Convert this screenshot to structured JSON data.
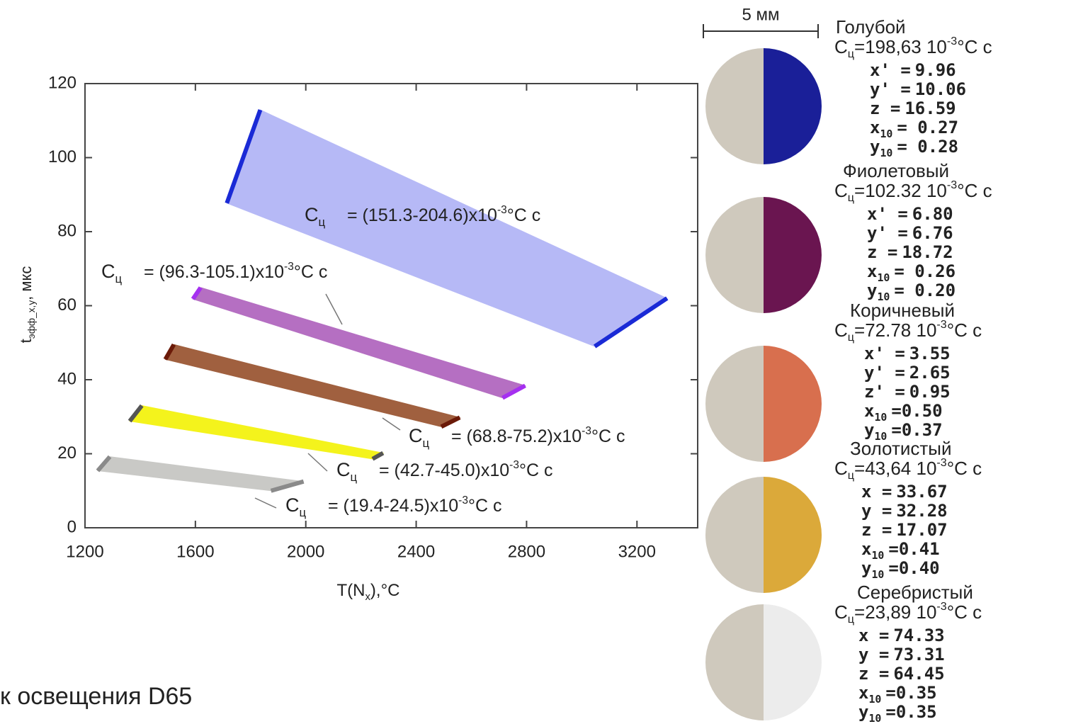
{
  "chart_data": {
    "type": "polygon",
    "xlabel": {
      "text": "T(N",
      "sub": "x",
      "rest": "),°C"
    },
    "ylabel": {
      "text": "t",
      "sub": "эфф_x,y",
      "rest": ", мкс"
    },
    "xlim": [
      1200,
      3420
    ],
    "ylim": [
      0,
      120
    ],
    "xticks": [
      1200,
      1600,
      2000,
      2400,
      2800,
      3200
    ],
    "yticks": [
      0,
      20,
      40,
      60,
      80,
      100,
      120
    ],
    "label_symbol": "C",
    "label_subscript": "ц",
    "series": [
      {
        "fill": "#b6b9f6",
        "edge": "#1a2ad6",
        "x": [
          1714,
          1835,
          3309,
          3047
        ],
        "values": [
          87.7,
          112.9,
          62.0,
          49.0
        ],
        "label": {
          "value": "= (151.3-204.6)x10",
          "exp": "-3",
          "unit": "°C c"
        }
      },
      {
        "fill": "#b56fc2",
        "edge": "#a530f0",
        "x": [
          1591,
          1619,
          2795,
          2713
        ],
        "values": [
          61.8,
          64.9,
          38.4,
          35.1
        ],
        "label": {
          "value": "= (96.3-105.1)x10",
          "exp": "-3",
          "unit": "°C c"
        }
      },
      {
        "fill": "#a0603f",
        "edge": "#6b1a08",
        "x": [
          1491,
          1522,
          2558,
          2491
        ],
        "values": [
          45.5,
          49.5,
          29.8,
          27.3
        ],
        "label": {
          "value": "= (68.8-75.2)x10",
          "exp": "-3",
          "unit": "°C c"
        }
      },
      {
        "fill": "#f4f31c",
        "edge": "#555",
        "x": [
          1362,
          1406,
          2280,
          2242
        ],
        "values": [
          28.8,
          33.0,
          20.2,
          18.6
        ],
        "label": {
          "value": "= (42.7-45.0)x10",
          "exp": "-3",
          "unit": "°C c"
        }
      },
      {
        "fill": "#c9c9c6",
        "edge": "#8a8a8a",
        "x": [
          1246,
          1290,
          1992,
          1874
        ],
        "values": [
          15.4,
          19.2,
          12.5,
          10.0
        ],
        "label": {
          "value": "= (19.4-24.5)x10",
          "exp": "-3",
          "unit": "°C c"
        }
      }
    ]
  },
  "scale_bar": "5 мм",
  "caption": "к освещения D65",
  "samples": [
    {
      "name": "Голубой",
      "color": "#1a1f98",
      "c_value": "=198,63 10",
      "c_exp": "-3",
      "c_unit": "°C c",
      "coords": [
        {
          "sym": "x' =",
          "val": "9.96"
        },
        {
          "sym": "y' =",
          "val": "10.06"
        },
        {
          "sym": "z =",
          "val": "16.59"
        },
        {
          "sym": "x",
          "sub": "10",
          "val": "= 0.27"
        },
        {
          "sym": "y",
          "sub": "10",
          "val": "= 0.28"
        }
      ]
    },
    {
      "name": "Фиолетовый",
      "color": "#6a1550",
      "c_value": "=102.32 10",
      "c_exp": "-3",
      "c_unit": "°C c",
      "coords": [
        {
          "sym": "x' =",
          "val": "6.80"
        },
        {
          "sym": "y' =",
          "val": "6.76"
        },
        {
          "sym": "z =",
          "val": "18.72"
        },
        {
          "sym": "x",
          "sub": "10",
          "val": "= 0.26"
        },
        {
          "sym": "y",
          "sub": "10",
          "val": "= 0.20"
        }
      ]
    },
    {
      "name": "Коричневый",
      "color": "#d86f4e",
      "c_value": "=72.78 10",
      "c_exp": "-3",
      "c_unit": "°C c",
      "coords": [
        {
          "sym": "x' =",
          "val": "3.55"
        },
        {
          "sym": "y' =",
          "val": "2.65"
        },
        {
          "sym": "z' =",
          "val": "0.95"
        },
        {
          "sym": "x",
          "sub": "10",
          "val": "=0.50"
        },
        {
          "sym": "y",
          "sub": "10",
          "val": "=0.37"
        }
      ]
    },
    {
      "name": "Золотистый",
      "color": "#dba93a",
      "c_value": "=43,64 10",
      "c_exp": "-3",
      "c_unit": "°C c",
      "coords": [
        {
          "sym": "x =",
          "val": "33.67"
        },
        {
          "sym": "y =",
          "val": "32.28"
        },
        {
          "sym": "z =",
          "val": "17.07"
        },
        {
          "sym": "x",
          "sub": "10",
          "val": "=0.41"
        },
        {
          "sym": "y",
          "sub": "10",
          "val": "=0.40"
        }
      ]
    },
    {
      "name": "Серебристый",
      "color": "#ececec",
      "c_value": "=23,89 10",
      "c_exp": "-3",
      "c_unit": "°C c",
      "coords": [
        {
          "sym": "x =",
          "val": "74.33"
        },
        {
          "sym": "y =",
          "val": "73.31"
        },
        {
          "sym": "z =",
          "val": "64.45"
        },
        {
          "sym": "x",
          "sub": "10",
          "val": "=0.35"
        },
        {
          "sym": "y",
          "sub": "10",
          "val": "=0.35"
        }
      ]
    }
  ]
}
